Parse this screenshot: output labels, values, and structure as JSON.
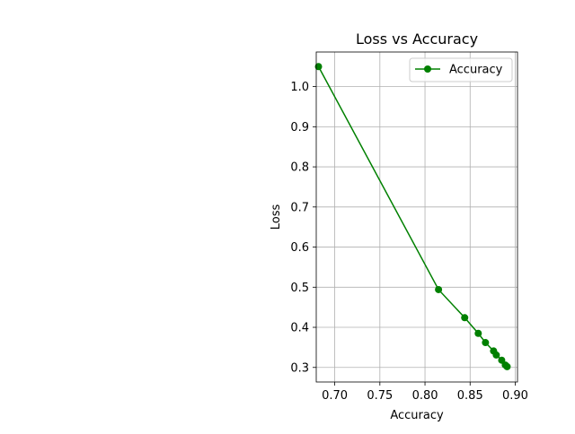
{
  "chart_data": {
    "type": "line",
    "title": "Loss vs Accuracy",
    "xlabel": "Accuracy",
    "ylabel": "Loss",
    "xlim": [
      0.6795,
      0.9025
    ],
    "ylim": [
      0.2637,
      1.0863
    ],
    "xticks": [
      0.7,
      0.75,
      0.8,
      0.85,
      0.9
    ],
    "xtick_labels": [
      "0.70",
      "0.75",
      "0.80",
      "0.85",
      "0.90"
    ],
    "yticks": [
      0.3,
      0.4,
      0.5,
      0.6,
      0.7,
      0.8,
      0.9,
      1.0
    ],
    "ytick_labels": [
      "0.3",
      "0.4",
      "0.5",
      "0.6",
      "0.7",
      "0.8",
      "0.9",
      "1.0"
    ],
    "grid": true,
    "legend_position": "upper right",
    "series": [
      {
        "name": "Accuracy",
        "color": "#008000",
        "marker": "circle",
        "x": [
          0.682,
          0.815,
          0.844,
          0.859,
          0.867,
          0.876,
          0.879,
          0.885,
          0.889,
          0.891
        ],
        "y": [
          1.05,
          0.494,
          0.424,
          0.385,
          0.362,
          0.341,
          0.331,
          0.318,
          0.306,
          0.302
        ]
      }
    ]
  }
}
